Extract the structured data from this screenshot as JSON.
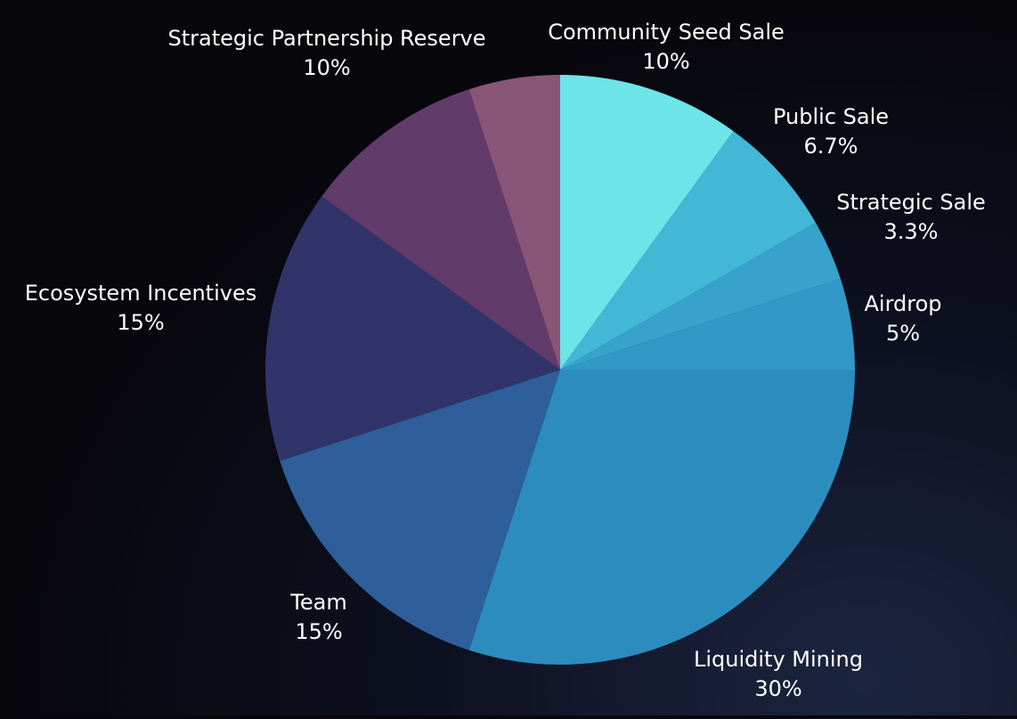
{
  "chart_data": {
    "type": "pie",
    "title": "",
    "start_angle_deg": 90,
    "direction": "clockwise",
    "slices": [
      {
        "label": "Community Seed Sale",
        "value": 10,
        "value_label": "10%",
        "color": "#6ce4e8"
      },
      {
        "label": "Public Sale",
        "value": 6.7,
        "value_label": "6.7%",
        "color": "#42b8d6"
      },
      {
        "label": "Strategic Sale",
        "value": 3.3,
        "value_label": "3.3%",
        "color": "#37a3cc"
      },
      {
        "label": "Airdrop",
        "value": 5,
        "value_label": "5%",
        "color": "#3199c8"
      },
      {
        "label": "Liquidity Mining",
        "value": 30,
        "value_label": "30%",
        "color": "#2d8cbe"
      },
      {
        "label": "Team",
        "value": 15,
        "value_label": "15%",
        "color": "#2e5f9a"
      },
      {
        "label": "Ecosystem Incentives",
        "value": 15,
        "value_label": "15%",
        "color": "#30346a"
      },
      {
        "label": "Strategic Partnership Reserve",
        "value": 10,
        "value_label": "10%",
        "color": "#613c6a"
      },
      {
        "label": "",
        "value": 5,
        "value_label": "",
        "color": "#8a5677"
      }
    ]
  }
}
